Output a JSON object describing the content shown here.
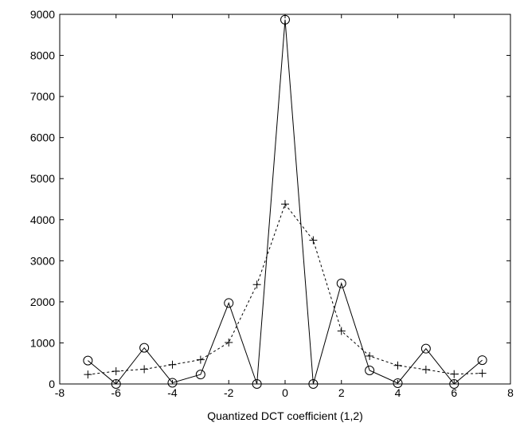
{
  "chart_data": {
    "type": "line",
    "title": "",
    "xlabel": "Quantized DCT coefficient (1,2)",
    "ylabel": "",
    "xlim": [
      -8,
      8
    ],
    "ylim": [
      0,
      9000
    ],
    "xticks": [
      -8,
      -6,
      -4,
      -2,
      0,
      2,
      4,
      6,
      8
    ],
    "yticks": [
      0,
      1000,
      2000,
      3000,
      4000,
      5000,
      6000,
      7000,
      8000,
      9000
    ],
    "grid": false,
    "series": [
      {
        "style": "solid",
        "marker": "circle",
        "color": "#000000",
        "x": [
          -7,
          -6,
          -5,
          -4,
          -3,
          -2,
          -1,
          0,
          1,
          2,
          3,
          4,
          5,
          6,
          7
        ],
        "y": [
          570,
          0,
          880,
          30,
          230,
          1970,
          0,
          8870,
          0,
          2450,
          330,
          20,
          860,
          0,
          580
        ]
      },
      {
        "style": "dashed",
        "marker": "plus",
        "color": "#000000",
        "x": [
          -7,
          -6,
          -5,
          -4,
          -3,
          -2,
          -1,
          0,
          1,
          2,
          3,
          4,
          5,
          6,
          7
        ],
        "y": [
          230,
          310,
          360,
          470,
          590,
          1010,
          2420,
          4380,
          3500,
          1290,
          680,
          450,
          350,
          240,
          260
        ]
      }
    ]
  }
}
